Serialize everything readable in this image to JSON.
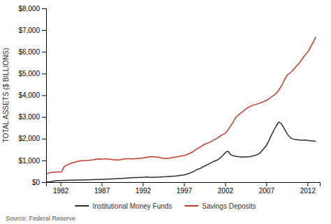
{
  "chart_data": {
    "type": "line",
    "ylabel": "TOTAL ASSETS ($ BILLIONS)",
    "annotations": [
      "Source: Federal Reserve"
    ],
    "xlim": [
      1980.25,
      2013.5
    ],
    "xticks": [
      1982,
      1987,
      1992,
      1997,
      2002,
      2007,
      2012
    ],
    "ylim": [
      0,
      8000
    ],
    "yticks": [
      {
        "value": 0,
        "label": "$0"
      },
      {
        "value": 1000,
        "label": "$1,000"
      },
      {
        "value": 2000,
        "label": "$2,000"
      },
      {
        "value": 3000,
        "label": "$3,000"
      },
      {
        "value": 4000,
        "label": "$4,000"
      },
      {
        "value": 5000,
        "label": "$5,000"
      },
      {
        "value": 6000,
        "label": "$6,000"
      },
      {
        "value": 7000,
        "label": "$7,000"
      },
      {
        "value": 8000,
        "label": "$8,000"
      }
    ],
    "grid": false,
    "legend": "bottom",
    "series": [
      {
        "name": "Institutional Money Funds",
        "color": "#2b2b2b",
        "x": [
          1980.3,
          1980.5,
          1980.7,
          1981.0,
          1981.3,
          1981.6,
          1982.0,
          1982.3,
          1982.6,
          1983.0,
          1983.3,
          1983.6,
          1984.0,
          1984.3,
          1984.6,
          1985.0,
          1985.3,
          1985.6,
          1986.0,
          1986.3,
          1986.6,
          1987.0,
          1987.3,
          1987.6,
          1988.0,
          1988.3,
          1988.6,
          1989.0,
          1989.3,
          1989.6,
          1990.0,
          1990.3,
          1990.6,
          1991.0,
          1991.3,
          1991.6,
          1992.0,
          1992.2,
          1992.4,
          1992.6,
          1992.8,
          1993.0,
          1993.3,
          1993.6,
          1994.0,
          1994.3,
          1994.6,
          1995.0,
          1995.3,
          1995.6,
          1996.0,
          1996.3,
          1996.6,
          1997.0,
          1997.3,
          1997.6,
          1998.0,
          1998.3,
          1998.6,
          1999.0,
          1999.3,
          1999.6,
          2000.0,
          2000.3,
          2000.6,
          2001.0,
          2001.3,
          2001.5,
          2001.7,
          2002.0,
          2002.1,
          2002.2,
          2002.3,
          2002.4,
          2002.5,
          2002.6,
          2002.8,
          2003.0,
          2003.3,
          2003.6,
          2004.0,
          2004.3,
          2004.6,
          2005.0,
          2005.3,
          2005.6,
          2006.0,
          2006.3,
          2006.6,
          2007.0,
          2007.3,
          2007.6,
          2008.0,
          2008.3,
          2008.5,
          2008.6,
          2008.8,
          2009.0,
          2009.3,
          2009.6,
          2010.0,
          2010.3,
          2010.6,
          2011.0,
          2011.3,
          2011.5,
          2011.7,
          2011.9,
          2012.0,
          2012.2,
          2012.4,
          2012.6,
          2012.8,
          2013.0
        ],
        "values": [
          5,
          8,
          12,
          35,
          55,
          70,
          75,
          78,
          80,
          85,
          88,
          90,
          95,
          98,
          100,
          105,
          108,
          110,
          115,
          118,
          120,
          125,
          130,
          135,
          142,
          148,
          155,
          165,
          172,
          178,
          185,
          192,
          198,
          205,
          210,
          215,
          218,
          225,
          240,
          235,
          225,
          220,
          222,
          225,
          230,
          238,
          245,
          255,
          262,
          270,
          280,
          295,
          310,
          330,
          360,
          400,
          460,
          520,
          580,
          640,
          700,
          760,
          830,
          895,
          950,
          1010,
          1080,
          1150,
          1220,
          1340,
          1390,
          1410,
          1420,
          1400,
          1350,
          1290,
          1240,
          1210,
          1190,
          1170,
          1160,
          1160,
          1165,
          1175,
          1200,
          1230,
          1280,
          1370,
          1500,
          1680,
          1900,
          2150,
          2450,
          2650,
          2760,
          2750,
          2700,
          2580,
          2380,
          2180,
          2020,
          1980,
          1960,
          1940,
          1930,
          1935,
          1945,
          1930,
          1920,
          1910,
          1905,
          1900,
          1890,
          1880
        ]
      },
      {
        "name": "Savings Deposits",
        "color": "#c0392b",
        "x": [
          1980.3,
          1980.5,
          1980.7,
          1981.0,
          1981.3,
          1981.6,
          1982.0,
          1982.1,
          1982.2,
          1982.3,
          1982.4,
          1982.5,
          1982.6,
          1982.8,
          1983.0,
          1983.3,
          1983.6,
          1984.0,
          1984.3,
          1984.6,
          1985.0,
          1985.3,
          1985.6,
          1986.0,
          1986.3,
          1986.6,
          1987.0,
          1987.3,
          1987.6,
          1988.0,
          1988.3,
          1988.6,
          1989.0,
          1989.3,
          1989.6,
          1990.0,
          1990.3,
          1990.6,
          1991.0,
          1991.3,
          1991.6,
          1992.0,
          1992.3,
          1992.6,
          1993.0,
          1993.3,
          1993.6,
          1994.0,
          1994.3,
          1994.6,
          1995.0,
          1995.3,
          1995.6,
          1996.0,
          1996.3,
          1996.6,
          1997.0,
          1997.3,
          1997.6,
          1998.0,
          1998.3,
          1998.6,
          1999.0,
          1999.3,
          1999.6,
          2000.0,
          2000.3,
          2000.6,
          2001.0,
          2001.3,
          2001.6,
          2002.0,
          2002.3,
          2002.6,
          2003.0,
          2003.3,
          2003.6,
          2004.0,
          2004.3,
          2004.6,
          2005.0,
          2005.3,
          2005.6,
          2006.0,
          2006.3,
          2006.6,
          2007.0,
          2007.3,
          2007.6,
          2008.0,
          2008.3,
          2008.6,
          2009.0,
          2009.3,
          2009.6,
          2010.0,
          2010.3,
          2010.6,
          2011.0,
          2011.3,
          2011.6,
          2012.0,
          2012.3,
          2012.6,
          2012.8,
          2013.0
        ],
        "values": [
          390,
          410,
          430,
          450,
          460,
          465,
          465,
          470,
          520,
          600,
          680,
          730,
          760,
          790,
          820,
          870,
          910,
          945,
          970,
          990,
          990,
          1000,
          1010,
          1030,
          1055,
          1070,
          1060,
          1065,
          1065,
          1050,
          1040,
          1030,
          1020,
          1035,
          1060,
          1080,
          1075,
          1070,
          1075,
          1085,
          1095,
          1105,
          1130,
          1155,
          1170,
          1165,
          1155,
          1140,
          1110,
          1090,
          1095,
          1110,
          1130,
          1155,
          1175,
          1195,
          1220,
          1260,
          1310,
          1380,
          1460,
          1540,
          1620,
          1700,
          1760,
          1810,
          1870,
          1940,
          2010,
          2090,
          2170,
          2250,
          2380,
          2550,
          2780,
          2980,
          3100,
          3200,
          3300,
          3390,
          3480,
          3530,
          3570,
          3610,
          3650,
          3700,
          3760,
          3830,
          3920,
          4020,
          4130,
          4280,
          4550,
          4780,
          4950,
          5060,
          5180,
          5320,
          5480,
          5640,
          5800,
          5980,
          6160,
          6380,
          6520,
          6680
        ]
      }
    ]
  }
}
